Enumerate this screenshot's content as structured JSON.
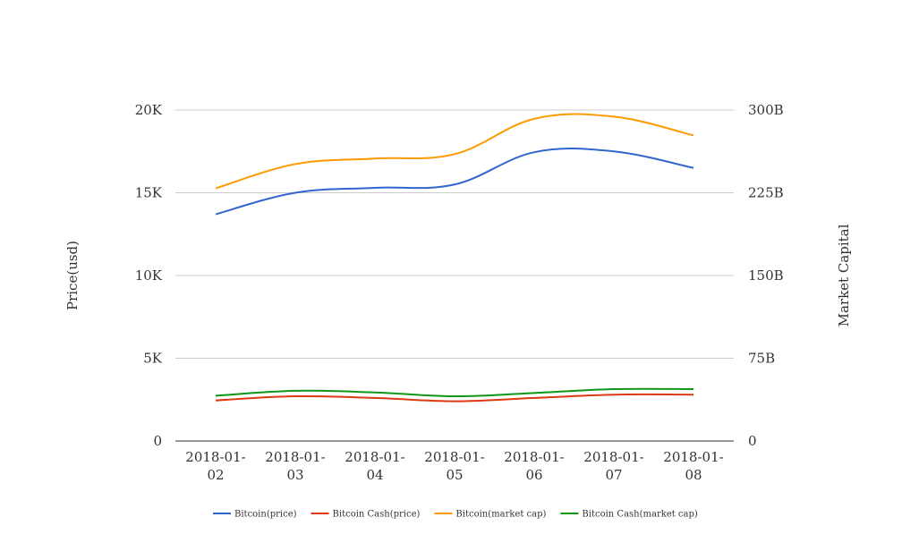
{
  "chart_data": {
    "type": "line",
    "title": "",
    "categories": [
      "2018-01-02",
      "2018-01-03",
      "2018-01-04",
      "2018-01-05",
      "2018-01-06",
      "2018-01-07",
      "2018-01-08"
    ],
    "category_tick_lines": [
      [
        "2018-01-",
        "02"
      ],
      [
        "2018-01-",
        "03"
      ],
      [
        "2018-01-",
        "04"
      ],
      [
        "2018-01-",
        "05"
      ],
      [
        "2018-01-",
        "06"
      ],
      [
        "2018-01-",
        "07"
      ],
      [
        "2018-01-",
        "08"
      ]
    ],
    "y_left": {
      "label": "Price(usd)",
      "ylim": [
        0,
        20000
      ],
      "ticks": [
        0,
        5000,
        10000,
        15000,
        20000
      ],
      "tick_labels": [
        "0",
        "5K",
        "10K",
        "15K",
        "20K"
      ]
    },
    "y_right": {
      "label": "Market Capital",
      "ylim": [
        0,
        300000000000
      ],
      "ticks": [
        0,
        75000000000,
        150000000000,
        225000000000,
        300000000000
      ],
      "tick_labels": [
        "0",
        "75B",
        "150B",
        "225B",
        "300B"
      ]
    },
    "grid": true,
    "legend_position": "bottom",
    "series": [
      {
        "name": "Bitcoin(price)",
        "axis": "left",
        "color": "#3366cc",
        "values": [
          13700,
          15000,
          15300,
          15500,
          17450,
          17500,
          16500
        ]
      },
      {
        "name": "Bitcoin Cash(price)",
        "axis": "left",
        "color": "#dc3912",
        "values": [
          2450,
          2700,
          2600,
          2400,
          2600,
          2800,
          2800
        ]
      },
      {
        "name": "Bitcoin(market cap)",
        "axis": "right",
        "color": "#ff9900",
        "values": [
          229000000000,
          251000000000,
          256000000000,
          260000000000,
          292000000000,
          294000000000,
          277000000000
        ]
      },
      {
        "name": "Bitcoin Cash(market cap)",
        "axis": "right",
        "color": "#109618",
        "values": [
          41000000000,
          45500000000,
          44000000000,
          40500000000,
          43500000000,
          47000000000,
          47000000000
        ]
      }
    ]
  }
}
